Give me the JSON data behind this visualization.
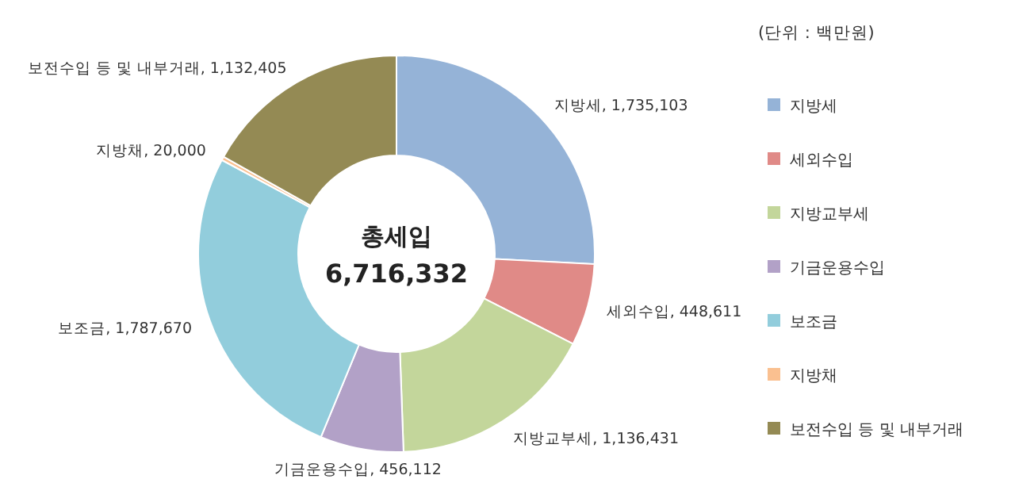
{
  "chart_data": {
    "type": "donut",
    "categories": [
      "지방세",
      "세외수입",
      "지방교부세",
      "기금운용수입",
      "보조금",
      "지방채",
      "보전수입 등 및 내부거래"
    ],
    "values": [
      1735103,
      448611,
      1136431,
      456112,
      1787670,
      20000,
      1132405
    ],
    "colors": [
      "#95b3d7",
      "#e08a87",
      "#c3d69b",
      "#b2a1c7",
      "#92cddc",
      "#fac090",
      "#948a54"
    ],
    "value_labels": [
      ", 1,735,103",
      ", 448,611",
      ", 1,136,431",
      ", 456,112",
      ", 1,787,670",
      ", 20,000",
      ", 1,132,405"
    ],
    "legend": "right",
    "legend_title": "(단위 : 백만원)",
    "annotations": [
      "총세입",
      "6,716,332"
    ]
  }
}
